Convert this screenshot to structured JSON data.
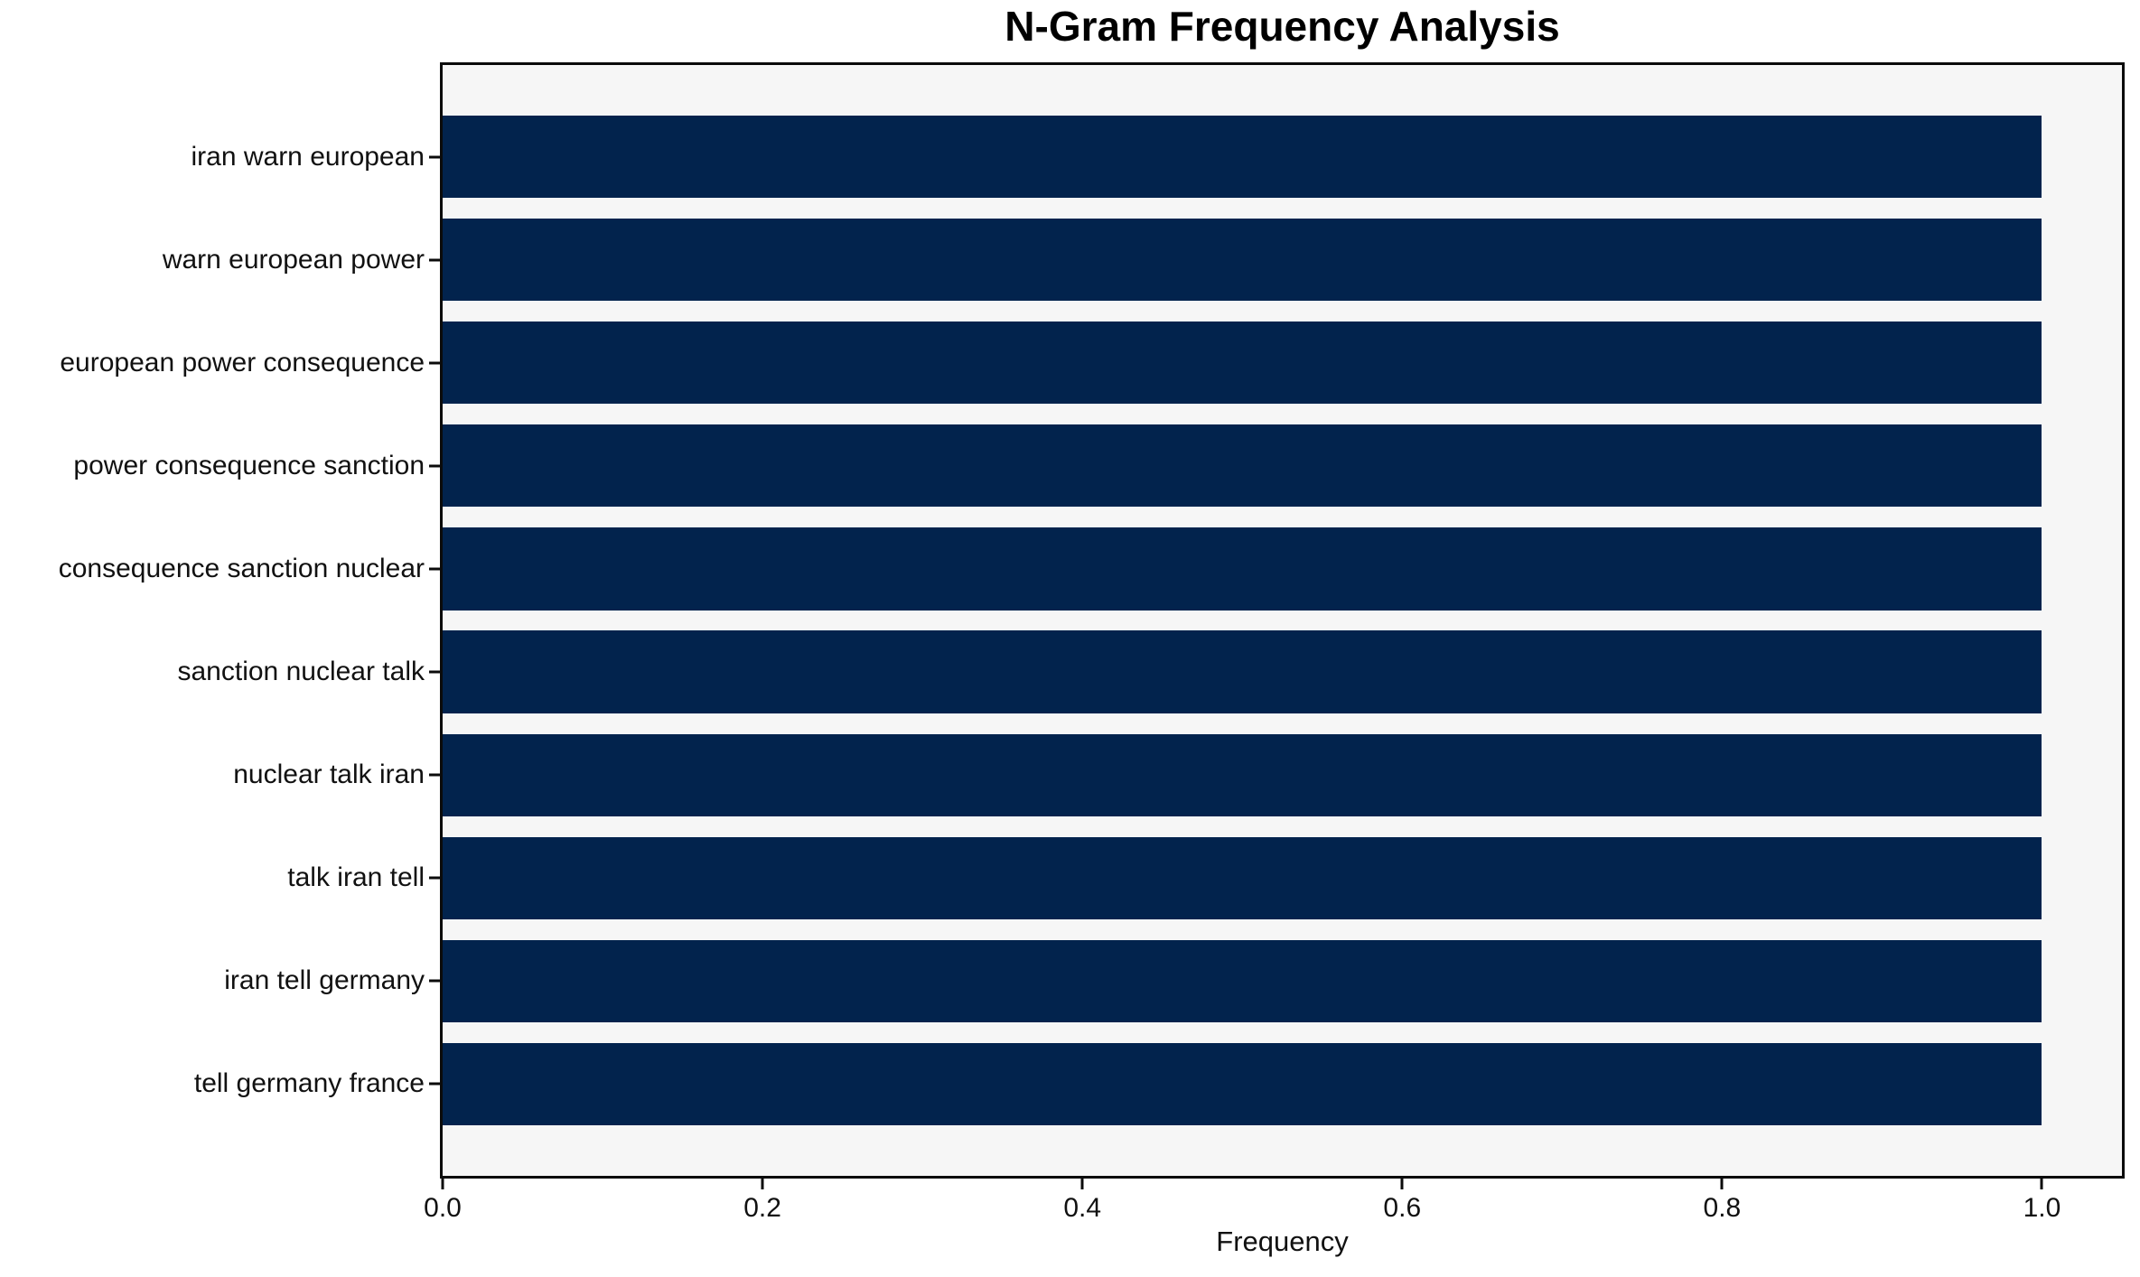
{
  "chart_data": {
    "type": "bar",
    "orientation": "horizontal",
    "title": "N-Gram Frequency Analysis",
    "xlabel": "Frequency",
    "ylabel": "",
    "categories": [
      "iran warn european",
      "warn european power",
      "european power consequence",
      "power consequence sanction",
      "consequence sanction nuclear",
      "sanction nuclear talk",
      "nuclear talk iran",
      "talk iran tell",
      "iran tell germany",
      "tell germany france"
    ],
    "values": [
      1.0,
      1.0,
      1.0,
      1.0,
      1.0,
      1.0,
      1.0,
      1.0,
      1.0,
      1.0
    ],
    "xlim": [
      0,
      1.05
    ],
    "x_ticks": [
      0.0,
      0.2,
      0.4,
      0.6,
      0.8,
      1.0
    ],
    "x_tick_labels": [
      "0.0",
      "0.2",
      "0.4",
      "0.6",
      "0.8",
      "1.0"
    ],
    "bar_height_fraction": 0.8,
    "grid": false,
    "legend_position": "none",
    "colors": {
      "bar": "#02234d",
      "plot_background": "#f6f6f6",
      "figure_background": "#ffffff",
      "spine": "#0b0b0b",
      "text": "#111111"
    }
  }
}
